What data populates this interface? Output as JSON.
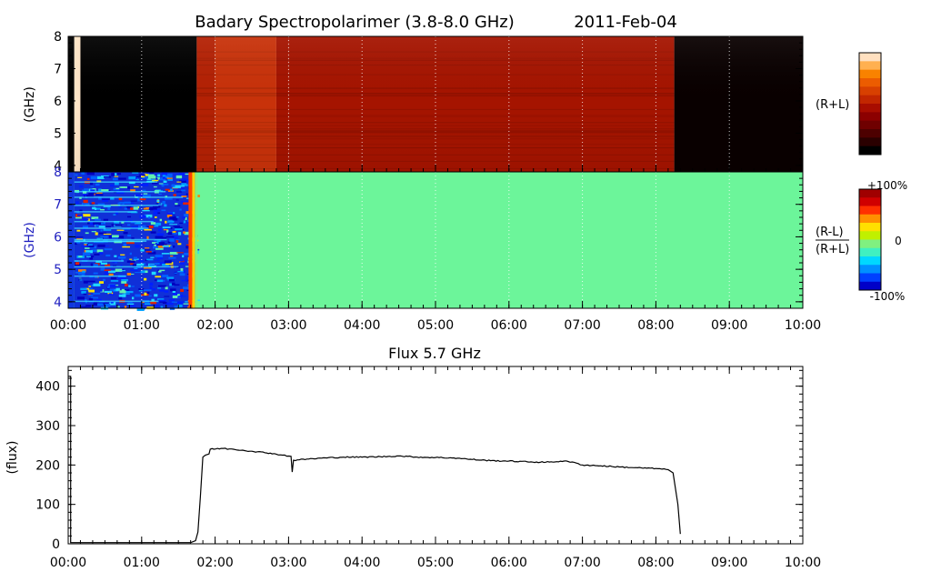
{
  "chart_data": [
    {
      "type": "heatmap",
      "title": "Badary Spectropolarimer (3.8-8.0 GHz)",
      "date": "2011-Feb-04",
      "ylabel": "(GHz)",
      "right_label": "(R+L)",
      "yticks": [
        "4",
        "5",
        "6",
        "7",
        "8"
      ],
      "ylim": [
        3.8,
        8.0
      ],
      "time_segments": [
        {
          "t0": "00:00",
          "t1": "00:05",
          "level": 0.0
        },
        {
          "t0": "00:05",
          "t1": "00:10",
          "level": 1.0
        },
        {
          "t0": "00:10",
          "t1": "01:45",
          "level": 0.0
        },
        {
          "t0": "01:45",
          "t1": "02:00",
          "level": 0.55
        },
        {
          "t0": "02:00",
          "t1": "02:50",
          "level": 0.62
        },
        {
          "t0": "02:50",
          "t1": "03:00",
          "level": 0.5
        },
        {
          "t0": "03:00",
          "t1": "08:15",
          "level": 0.5
        },
        {
          "t0": "08:15",
          "t1": "10:00",
          "level": 0.02
        }
      ],
      "colorbar": {
        "colors": [
          "#000000",
          "#2a0000",
          "#4d0000",
          "#6f0000",
          "#8c0000",
          "#a80d00",
          "#c22600",
          "#d84000",
          "#ec5c00",
          "#f98200",
          "#ffb050",
          "#ffe0c0"
        ]
      }
    },
    {
      "type": "heatmap",
      "ylabel": "(GHz)",
      "right_label_num": "(R-L)",
      "right_label_den": "(R+L)",
      "yticks": [
        "4",
        "5",
        "6",
        "7",
        "8"
      ],
      "ylim": [
        3.8,
        8.0
      ],
      "noise_interval": {
        "t0": "00:05",
        "t1": "01:45"
      },
      "background_color": "#6cf59a",
      "colorbar": {
        "colors": [
          "#0000c8",
          "#0040ff",
          "#0090ff",
          "#00d8ff",
          "#40f0c0",
          "#80f080",
          "#c0f000",
          "#ffe000",
          "#ff9000",
          "#ff3000",
          "#d00000",
          "#a00000"
        ],
        "labels": [
          "+100%",
          "0",
          "-100%"
        ]
      }
    },
    {
      "type": "line",
      "title": "Flux 5.7 GHz",
      "ylabel": "(flux)",
      "ylim": [
        0,
        450
      ],
      "yticks": [
        "0",
        "100",
        "200",
        "300",
        "400"
      ],
      "points": [
        [
          "00:00",
          425
        ],
        [
          "00:02",
          425
        ],
        [
          "00:02",
          3
        ],
        [
          "01:40",
          3
        ],
        [
          "01:44",
          8
        ],
        [
          "01:46",
          30
        ],
        [
          "01:48",
          120
        ],
        [
          "01:50",
          220
        ],
        [
          "01:52",
          225
        ],
        [
          "01:55",
          228
        ],
        [
          "01:56",
          240
        ],
        [
          "02:05",
          242
        ],
        [
          "02:15",
          240
        ],
        [
          "02:30",
          235
        ],
        [
          "02:45",
          230
        ],
        [
          "02:55",
          225
        ],
        [
          "03:02",
          222
        ],
        [
          "03:03",
          182
        ],
        [
          "03:04",
          212
        ],
        [
          "03:15",
          215
        ],
        [
          "03:30",
          218
        ],
        [
          "03:45",
          220
        ],
        [
          "04:00",
          220
        ],
        [
          "04:15",
          221
        ],
        [
          "04:30",
          223
        ],
        [
          "04:45",
          220
        ],
        [
          "05:00",
          219
        ],
        [
          "05:15",
          218
        ],
        [
          "05:30",
          214
        ],
        [
          "05:45",
          211
        ],
        [
          "06:00",
          210
        ],
        [
          "06:15",
          208
        ],
        [
          "06:30",
          207
        ],
        [
          "06:45",
          210
        ],
        [
          "06:55",
          205
        ],
        [
          "07:00",
          200
        ],
        [
          "07:15",
          198
        ],
        [
          "07:30",
          195
        ],
        [
          "07:45",
          193
        ],
        [
          "08:00",
          191
        ],
        [
          "08:10",
          188
        ],
        [
          "08:14",
          180
        ],
        [
          "08:18",
          100
        ],
        [
          "08:20",
          25
        ]
      ]
    }
  ],
  "xticks": [
    "00:00",
    "01:00",
    "02:00",
    "03:00",
    "04:00",
    "05:00",
    "06:00",
    "07:00",
    "08:00",
    "09:00",
    "10:00"
  ],
  "xlim": [
    "00:00",
    "10:00"
  ]
}
